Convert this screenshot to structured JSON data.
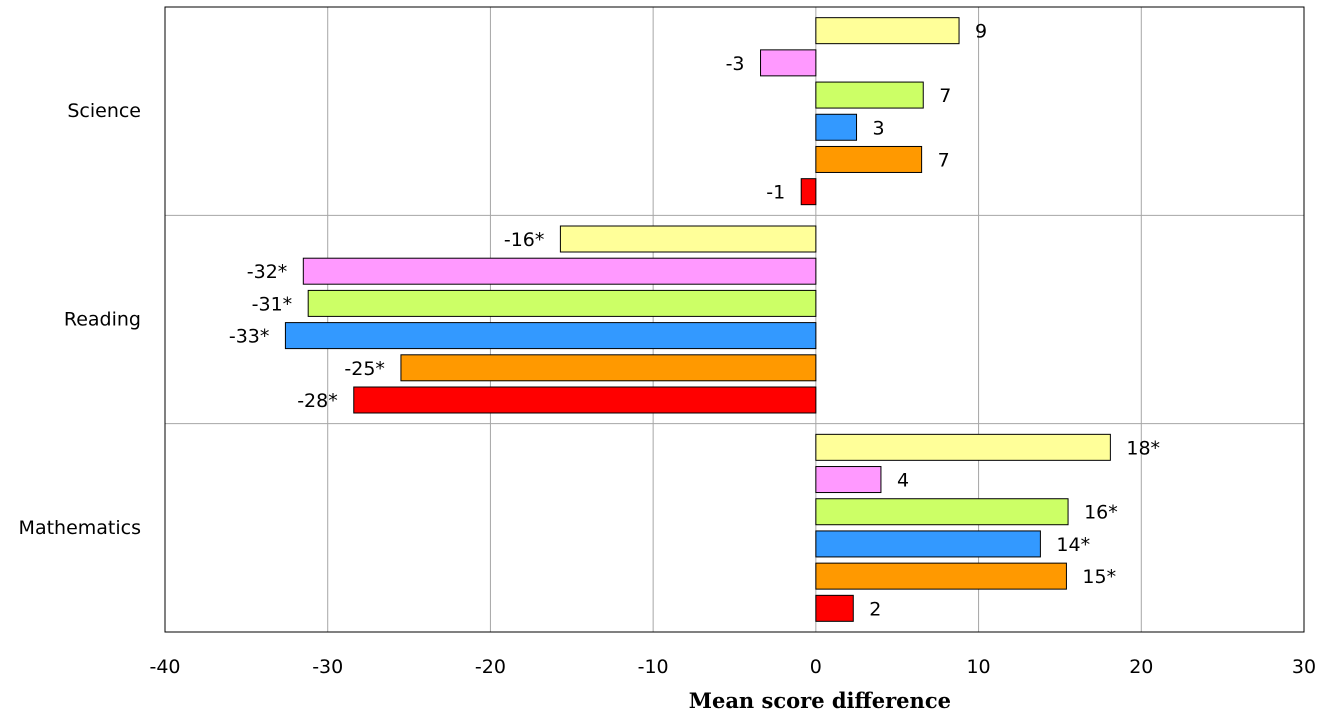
{
  "chart_data": {
    "type": "bar",
    "orientation": "horizontal",
    "xlabel": "Mean score difference",
    "ylabel": "",
    "xlim": [
      -40,
      30
    ],
    "x_ticks": [
      -40,
      -30,
      -20,
      -10,
      0,
      10,
      20,
      30
    ],
    "grid": true,
    "legend": "none",
    "categories": [
      "Science",
      "Reading",
      "Mathematics"
    ],
    "series": [
      {
        "color": "#FFFF99",
        "values": [
          8.8,
          -15.7,
          18.1
        ],
        "labels": [
          "9",
          "-16*",
          "18*"
        ]
      },
      {
        "color": "#FF99FF",
        "values": [
          -3.4,
          -31.5,
          4.0
        ],
        "labels": [
          "-3",
          "-32*",
          "4"
        ]
      },
      {
        "color": "#CCFF66",
        "values": [
          6.6,
          -31.2,
          15.5
        ],
        "labels": [
          "7",
          "-31*",
          "16*"
        ]
      },
      {
        "color": "#3399FF",
        "values": [
          2.5,
          -32.6,
          13.8
        ],
        "labels": [
          "3",
          "-33*",
          "14*"
        ]
      },
      {
        "color": "#FF9900",
        "values": [
          6.5,
          -25.5,
          15.4
        ],
        "labels": [
          "7",
          "-25*",
          "15*"
        ]
      },
      {
        "color": "#FF0000",
        "values": [
          -0.9,
          -28.4,
          2.3
        ],
        "labels": [
          "-1",
          "-28*",
          "2"
        ]
      }
    ]
  }
}
